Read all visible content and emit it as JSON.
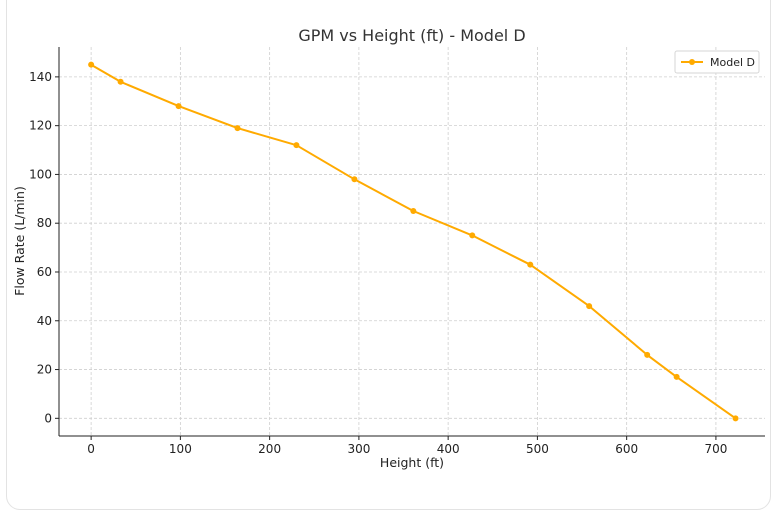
{
  "chart_data": {
    "type": "line",
    "title": "GPM vs Height (ft) - Model D",
    "xlabel": "Height (ft)",
    "ylabel": "Flow Rate (L/min)",
    "xlim": [
      -36,
      755
    ],
    "ylim": [
      -7.25,
      152.25
    ],
    "xticks": [
      0,
      100,
      200,
      300,
      400,
      500,
      600,
      700
    ],
    "yticks": [
      0,
      20,
      40,
      60,
      80,
      100,
      120,
      140
    ],
    "grid": true,
    "legend_position": "top-right",
    "color": "#FFAA00",
    "series": [
      {
        "name": "Model D",
        "x": [
          0,
          33,
          98,
          164,
          230,
          295,
          361,
          427,
          492,
          558,
          623,
          656,
          722
        ],
        "y": [
          145,
          138,
          128,
          119,
          112,
          98,
          85,
          75,
          63,
          46,
          26,
          17,
          0
        ]
      }
    ]
  }
}
